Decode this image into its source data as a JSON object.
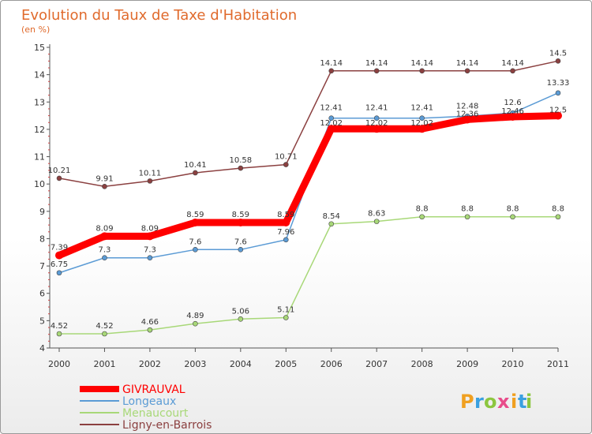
{
  "chart_data": {
    "type": "line",
    "title": "Evolution du Taux de Taxe d'Habitation",
    "subtitle": "(en %)",
    "categories": [
      "2000",
      "2001",
      "2002",
      "2003",
      "2004",
      "2005",
      "2006",
      "2007",
      "2008",
      "2009",
      "2010",
      "2011"
    ],
    "ylim": [
      4,
      15
    ],
    "yticks": [
      "4",
      "5",
      "6",
      "7",
      "8",
      "9",
      "10",
      "11",
      "12",
      "13",
      "14",
      "15"
    ],
    "grid": false,
    "legend_position": "bottom-left",
    "series": [
      {
        "name": "GIVRAUVAL",
        "color": "#ff0000",
        "values": [
          7.39,
          8.09,
          8.09,
          8.59,
          8.59,
          8.59,
          12.02,
          12.02,
          12.02,
          12.36,
          12.46,
          12.5
        ],
        "labels": [
          "7.39",
          "8.09",
          "8.09",
          "8.59",
          "8.59",
          "8.59",
          "12.02",
          "12.02",
          "12.02",
          "12.36",
          "12.46",
          "12.5"
        ]
      },
      {
        "name": "Longeaux",
        "color": "#5b9bd5",
        "values": [
          6.75,
          7.3,
          7.3,
          7.6,
          7.6,
          7.96,
          12.41,
          12.41,
          12.41,
          12.48,
          12.6,
          13.33
        ],
        "labels": [
          "6.75",
          "7.3",
          "7.3",
          "7.6",
          "7.6",
          "7.96",
          "12.41",
          "12.41",
          "12.41",
          "12.48",
          "12.6",
          "13.33"
        ]
      },
      {
        "name": "Menaucourt",
        "color": "#a8d878",
        "values": [
          4.52,
          4.52,
          4.66,
          4.89,
          5.06,
          5.11,
          8.54,
          8.63,
          8.8,
          8.8,
          8.8,
          8.8
        ],
        "labels": [
          "4.52",
          "4.52",
          "4.66",
          "4.89",
          "5.06",
          "5.11",
          "8.54",
          "8.63",
          "8.8",
          "8.8",
          "8.8",
          "8.8"
        ]
      },
      {
        "name": "Ligny-en-Barrois",
        "color": "#8b4040",
        "values": [
          10.21,
          9.91,
          10.11,
          10.41,
          10.58,
          10.71,
          14.14,
          14.14,
          14.14,
          14.14,
          14.14,
          14.5
        ],
        "labels": [
          "10.21",
          "9.91",
          "10.11",
          "10.41",
          "10.58",
          "10.71",
          "14.14",
          "14.14",
          "14.14",
          "14.14",
          "14.14",
          "14.5"
        ]
      }
    ]
  },
  "logo": {
    "letters": [
      "P",
      "r",
      "o",
      "x",
      "i",
      "t",
      "i"
    ],
    "colors": [
      "#f0a020",
      "#3aa0e0",
      "#8cc63f",
      "#e84c8a",
      "#f0a020",
      "#3aa0e0",
      "#8cc63f"
    ]
  }
}
